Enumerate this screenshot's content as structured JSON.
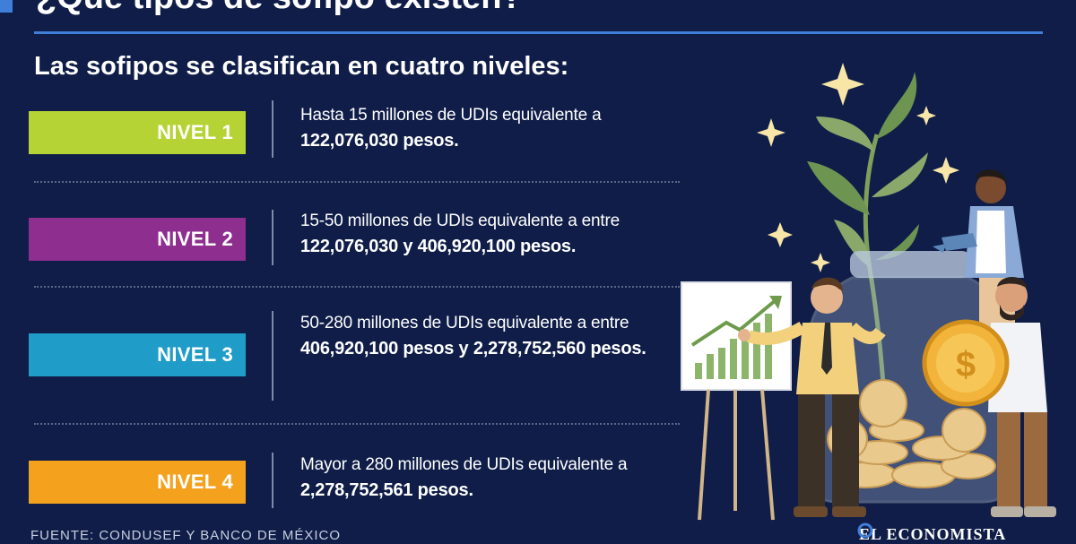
{
  "header": {
    "title": "¿Qué tipos de sofipo existen?",
    "subtitle": "Las sofipos se clasifican en cuatro niveles:"
  },
  "levels": [
    {
      "label": "NIVEL 1",
      "color": "#b5d334",
      "text": "Hasta 15 millones de UDIs equivalente a",
      "bold": "122,076,030 pesos."
    },
    {
      "label": "NIVEL 2",
      "color": "#8e2e8f",
      "text": "15-50 millones de UDIs equivalente a entre",
      "bold": "122,076,030 y 406,920,100 pesos."
    },
    {
      "label": "NIVEL 3",
      "color": "#1f9cc8",
      "text": "50-280 millones de UDIs equivalente a entre",
      "bold": "406,920,100 pesos y 2,278,752,560 pesos."
    },
    {
      "label": "NIVEL 4",
      "color": "#f4a21d",
      "text": "Mayor a 280 millones de UDIs equivalente a",
      "bold": "2,278,752,561 pesos."
    }
  ],
  "footer": {
    "source": "FUENTE: CONDUSEF Y BANCO DE MÉXICO",
    "brand": "EL ECONOMISTA"
  },
  "illustration": {
    "description_icon": "money-jar-growth-illustration"
  }
}
